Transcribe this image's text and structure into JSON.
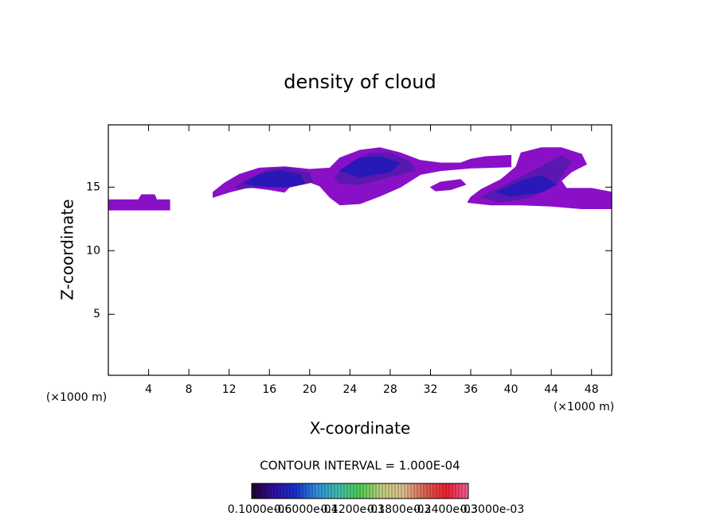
{
  "chart_data": {
    "type": "contour",
    "title": "density of cloud",
    "x_label": "X-coordinate",
    "y_label": "Z-coordinate",
    "x_unit_labels": [
      "(×1000 m)",
      "(×1000 m)"
    ],
    "contour_interval_label": "CONTOUR INTERVAL = 1.000E-04",
    "xlim": [
      0,
      50
    ],
    "xticks": [
      4,
      8,
      12,
      16,
      20,
      24,
      28,
      32,
      36,
      40,
      44,
      48
    ],
    "ylim": [
      0.2,
      19.9
    ],
    "yticks": [
      5,
      10,
      15
    ],
    "regions": [
      {
        "color": "#8a10c8",
        "x": [
          0,
          3,
          3.3,
          4.6,
          4.8,
          6.1,
          6.1,
          0
        ],
        "z": [
          14.0,
          14.0,
          14.4,
          14.4,
          14.0,
          14.0,
          13.2,
          13.2
        ]
      },
      {
        "color": "#8a10c8",
        "x": [
          10.4,
          11.5,
          13,
          15,
          17.5,
          20,
          22,
          23,
          25,
          27,
          29,
          31,
          33,
          35,
          36,
          37.5,
          40,
          40,
          36,
          33,
          31,
          29,
          27,
          25,
          23,
          22,
          21,
          20,
          18.5,
          17.5,
          16,
          14,
          12,
          10.4
        ],
        "z": [
          14.6,
          15.3,
          16.0,
          16.5,
          16.6,
          16.4,
          16.5,
          17.3,
          17.9,
          18.1,
          17.7,
          17.1,
          16.9,
          16.9,
          17.2,
          17.4,
          17.5,
          16.6,
          16.5,
          16.3,
          16.0,
          15.0,
          14.3,
          13.7,
          13.6,
          14.2,
          15.1,
          15.4,
          15.4,
          14.6,
          14.8,
          15.0,
          14.6,
          14.2
        ]
      },
      {
        "color": "#8a10c8",
        "x": [
          36,
          37,
          39,
          40.5,
          41,
          43,
          45,
          47,
          47.5,
          46,
          45,
          45.5,
          48,
          50,
          50,
          47,
          44,
          41,
          38,
          35.7
        ],
        "z": [
          14.2,
          14.8,
          15.6,
          16.6,
          17.7,
          18.1,
          18.1,
          17.6,
          16.8,
          16.2,
          15.5,
          14.9,
          14.9,
          14.6,
          13.3,
          13.3,
          13.5,
          13.6,
          13.6,
          13.8
        ]
      },
      {
        "color": "#8a10c8",
        "x": [
          32,
          33,
          35,
          35.5,
          34,
          32.5
        ],
        "z": [
          15.0,
          15.4,
          15.6,
          15.2,
          14.8,
          14.7
        ]
      },
      {
        "color": "#5a18b0",
        "x": [
          12.5,
          14,
          16,
          18,
          20,
          20.3,
          18,
          15,
          13
        ],
        "z": [
          15.0,
          15.7,
          16.4,
          16.5,
          16.1,
          15.4,
          15.0,
          15.0,
          14.9
        ]
      },
      {
        "color": "#5a18b0",
        "x": [
          22.5,
          24,
          26,
          28,
          30,
          30.5,
          28,
          25,
          23
        ],
        "z": [
          15.8,
          16.9,
          17.7,
          17.7,
          17.0,
          16.3,
          15.8,
          15.2,
          15.3
        ]
      },
      {
        "color": "#5a18b0",
        "x": [
          37,
          39,
          41,
          43,
          45,
          46,
          44.5,
          42,
          39
        ],
        "z": [
          14.2,
          15.0,
          15.8,
          16.6,
          17.5,
          17.0,
          15.3,
          14.2,
          13.8
        ]
      },
      {
        "color": "#2818b8",
        "x": [
          13.5,
          15,
          17,
          19,
          19.5,
          17.5,
          15
        ],
        "z": [
          15.3,
          16.0,
          16.3,
          16.0,
          15.3,
          15.0,
          15.1
        ]
      },
      {
        "color": "#2818b8",
        "x": [
          23,
          25,
          27,
          29,
          28,
          25
        ],
        "z": [
          16.3,
          17.3,
          17.4,
          16.9,
          16.2,
          15.8
        ]
      },
      {
        "color": "#2818b8",
        "x": [
          38.5,
          41,
          43,
          44.5,
          43,
          40
        ],
        "z": [
          14.6,
          15.5,
          15.9,
          15.2,
          14.6,
          14.3
        ]
      }
    ],
    "colorbar": {
      "colors": [
        "#200030",
        "#3010a0",
        "#1830d0",
        "#3090e0",
        "#40c0b0",
        "#50d050",
        "#c0d080",
        "#e0c090",
        "#e06050",
        "#f02030",
        "#f060a0"
      ],
      "labels": [
        "0.1000e-06",
        "0.6000e-04",
        "0.1200e-03",
        "0.1800e-03",
        "0.2400e-03",
        "0.3000e-03"
      ]
    }
  }
}
